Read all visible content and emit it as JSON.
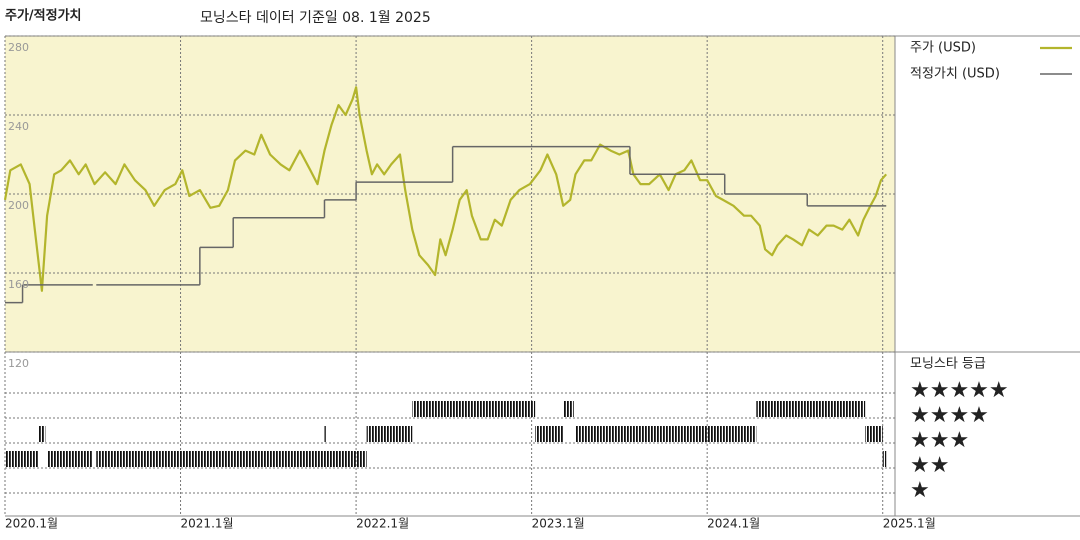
{
  "chart_data": {
    "type": "line",
    "title": "주가/적정가치",
    "subtitle": "모닝스타 데이터 기준일 08. 1월 2025",
    "xlim": [
      2020.0,
      2025.07
    ],
    "ylim": [
      120,
      280
    ],
    "xticks": [
      {
        "value": 2020,
        "label": "2020.1월"
      },
      {
        "value": 2021,
        "label": "2021.1월"
      },
      {
        "value": 2022,
        "label": "2022.1월"
      },
      {
        "value": 2023,
        "label": "2023.1월"
      },
      {
        "value": 2024,
        "label": "2024.1월"
      },
      {
        "value": 2025,
        "label": "2025.1월"
      }
    ],
    "yticks": [
      280,
      240,
      200,
      160,
      120
    ],
    "grid": true,
    "series": [
      {
        "name": "주가 (USD)",
        "color": "#b3b52c",
        "x": [
          2020.0,
          2020.03,
          2020.09,
          2020.14,
          2020.17,
          2020.21,
          2020.24,
          2020.28,
          2020.32,
          2020.37,
          2020.42,
          2020.46,
          2020.51,
          2020.57,
          2020.63,
          2020.68,
          2020.74,
          2020.8,
          2020.85,
          2020.91,
          2020.97,
          2021.01,
          2021.05,
          2021.11,
          2021.17,
          2021.22,
          2021.27,
          2021.31,
          2021.37,
          2021.42,
          2021.46,
          2021.51,
          2021.57,
          2021.62,
          2021.68,
          2021.74,
          2021.78,
          2021.82,
          2021.86,
          2021.9,
          2021.94,
          2021.98,
          2022.0,
          2022.02,
          2022.06,
          2022.09,
          2022.12,
          2022.16,
          2022.2,
          2022.25,
          2022.28,
          2022.32,
          2022.36,
          2022.41,
          2022.45,
          2022.48,
          2022.51,
          2022.55,
          2022.59,
          2022.63,
          2022.66,
          2022.71,
          2022.75,
          2022.79,
          2022.83,
          2022.88,
          2022.93,
          2022.99,
          2023.05,
          2023.09,
          2023.14,
          2023.18,
          2023.22,
          2023.25,
          2023.3,
          2023.34,
          2023.39,
          2023.45,
          2023.5,
          2023.55,
          2023.58,
          2023.62,
          2023.67,
          2023.73,
          2023.78,
          2023.82,
          2023.87,
          2023.91,
          2023.96,
          2024.0,
          2024.05,
          2024.09,
          2024.15,
          2024.21,
          2024.25,
          2024.3,
          2024.33,
          2024.37,
          2024.4,
          2024.45,
          2024.49,
          2024.54,
          2024.58,
          2024.63,
          2024.68,
          2024.72,
          2024.77,
          2024.81,
          2024.86,
          2024.89,
          2024.93,
          2024.96,
          2024.99,
          2025.02
        ],
        "values": [
          197,
          212,
          215,
          205,
          182,
          151,
          189,
          210,
          212,
          217,
          210,
          215,
          205,
          211,
          205,
          215,
          207,
          202,
          194,
          202,
          205,
          212,
          199,
          202,
          193,
          194,
          202,
          217,
          222,
          220,
          230,
          220,
          215,
          212,
          222,
          212,
          205,
          222,
          235,
          245,
          240,
          248,
          254,
          240,
          222,
          210,
          215,
          210,
          215,
          220,
          202,
          182,
          169,
          164,
          159,
          177,
          169,
          182,
          197,
          202,
          189,
          177,
          177,
          187,
          184,
          197,
          202,
          205,
          212,
          220,
          210,
          194,
          197,
          210,
          217,
          217,
          225,
          222,
          220,
          222,
          210,
          205,
          205,
          210,
          202,
          210,
          212,
          217,
          207,
          207,
          199,
          197,
          194,
          189,
          189,
          184,
          172,
          169,
          174,
          179,
          177,
          174,
          182,
          179,
          184,
          184,
          182,
          187,
          179,
          187,
          194,
          199,
          207,
          210
        ]
      },
      {
        "name": "적정가치 (USD)",
        "color": "#666666",
        "step": true,
        "x": [
          2020.0,
          2020.1,
          2020.5,
          2020.52,
          2021.11,
          2021.3,
          2021.82,
          2022.0,
          2022.55,
          2023.56,
          2024.1,
          2024.57,
          2025.02
        ],
        "values": [
          145,
          154,
          null,
          154,
          173,
          188,
          197,
          206,
          224,
          210,
          200,
          194,
          194
        ]
      }
    ],
    "rating": {
      "title": "모닝스타 등급",
      "labels": [
        "★★★★★",
        "★★★★",
        "★★★",
        "★★",
        "★"
      ],
      "start": [
        2020.0,
        2020.19,
        2020.24,
        2020.52,
        2021.82,
        2022.06,
        2022.32,
        2023.02,
        2023.18,
        2023.25,
        2024.28,
        2024.9,
        2025.0
      ],
      "end": [
        2020.19,
        2020.23,
        2020.5,
        2022.06,
        2021.83,
        2022.32,
        2023.02,
        2023.18,
        2023.24,
        2024.28,
        2024.9,
        2025.0,
        2025.02
      ],
      "stars": [
        2,
        3,
        2,
        2,
        3,
        3,
        4,
        3,
        4,
        3,
        4,
        3,
        2
      ]
    }
  }
}
